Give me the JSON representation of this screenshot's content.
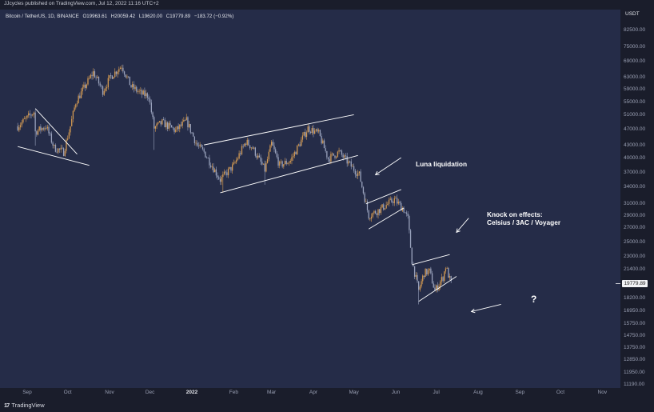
{
  "header": {
    "published": "JJcycles published on TradingView.com, Jul 12, 2022 11:16 UTC+2",
    "symbol": "Bitcoin / TetherUS, 1D, BINANCE",
    "open": "O19963.61",
    "high": "H20059.42",
    "low": "L19620.00",
    "close": "C19779.89",
    "change": "−183.72 (−0.92%)"
  },
  "price_axis": {
    "currency": "USDT",
    "last_price": "19779.89"
  },
  "footer": {
    "brand": "TradingView",
    "logo_mark": "17"
  },
  "annotations": {
    "luna": "Luna liquidation",
    "knock_line1": "Knock on effects:",
    "knock_line2": "Celsius / 3AC / Voyager",
    "question": "?"
  },
  "colors": {
    "background": "#252c48",
    "up_candle": "#d49a52",
    "down_candle": "#9aa3bd",
    "trendline": "#ffffff",
    "text": "#e2e4ea"
  },
  "chart_data": {
    "type": "candlestick",
    "title": "Bitcoin / TetherUS, 1D, BINANCE",
    "x_ticks": [
      "Sep",
      "Oct",
      "Nov",
      "Dec",
      "2022",
      "Feb",
      "Mar",
      "Apr",
      "May",
      "Jun",
      "Jul",
      "Aug",
      "Sep",
      "Oct",
      "Nov"
    ],
    "y_ticks": [
      "82500.00",
      "75000.00",
      "69000.00",
      "63000.00",
      "59000.00",
      "55000.00",
      "51000.00",
      "47000.00",
      "43000.00",
      "40000.00",
      "37000.00",
      "34000.00",
      "31000.00",
      "29000.00",
      "27000.00",
      "25000.00",
      "23000.00",
      "21400.00",
      "19779.89",
      "18200.00",
      "16950.00",
      "15750.00",
      "14750.00",
      "13750.00",
      "12850.00",
      "11950.00",
      "11190.00"
    ],
    "y_scale": "log",
    "ylim": [
      11000,
      88000
    ],
    "path": [
      [
        "2021-08-25",
        48000
      ],
      [
        "2021-09-06",
        52000
      ],
      [
        "2021-09-07",
        46500
      ],
      [
        "2021-09-15",
        48000
      ],
      [
        "2021-09-21",
        42500
      ],
      [
        "2021-09-28",
        41500
      ],
      [
        "2021-10-03",
        48000
      ],
      [
        "2021-10-07",
        55000
      ],
      [
        "2021-10-15",
        61000
      ],
      [
        "2021-10-20",
        65000
      ],
      [
        "2021-10-27",
        58500
      ],
      [
        "2021-11-02",
        63500
      ],
      [
        "2021-11-10",
        67500
      ],
      [
        "2021-11-17",
        60000
      ],
      [
        "2021-11-25",
        57500
      ],
      [
        "2021-11-30",
        57000
      ],
      [
        "2021-12-04",
        47500
      ],
      [
        "2021-12-10",
        49000
      ],
      [
        "2021-12-20",
        46800
      ],
      [
        "2021-12-28",
        49500
      ],
      [
        "2022-01-05",
        43000
      ],
      [
        "2022-01-10",
        41500
      ],
      [
        "2022-01-22",
        35500
      ],
      [
        "2022-02-01",
        38500
      ],
      [
        "2022-02-10",
        44000
      ],
      [
        "2022-02-15",
        42500
      ],
      [
        "2022-02-24",
        37500
      ],
      [
        "2022-03-01",
        43500
      ],
      [
        "2022-03-07",
        38500
      ],
      [
        "2022-03-15",
        39500
      ],
      [
        "2022-03-28",
        47500
      ],
      [
        "2022-04-05",
        46000
      ],
      [
        "2022-04-12",
        40000
      ],
      [
        "2022-04-20",
        41500
      ],
      [
        "2022-04-30",
        38000
      ],
      [
        "2022-05-05",
        36500
      ],
      [
        "2022-05-10",
        31000
      ],
      [
        "2022-05-12",
        29000
      ],
      [
        "2022-05-20",
        30000
      ],
      [
        "2022-05-31",
        31800
      ],
      [
        "2022-06-07",
        30000
      ],
      [
        "2022-06-10",
        28500
      ],
      [
        "2022-06-13",
        22500
      ],
      [
        "2022-06-18",
        19000
      ],
      [
        "2022-06-22",
        21000
      ],
      [
        "2022-06-26",
        21200
      ],
      [
        "2022-06-30",
        19000
      ],
      [
        "2022-07-06",
        20500
      ],
      [
        "2022-07-08",
        21800
      ],
      [
        "2022-07-12",
        19780
      ]
    ],
    "wicks": [
      [
        "2021-09-07",
        43000
      ],
      [
        "2021-12-04",
        42000
      ],
      [
        "2022-01-24",
        33000
      ],
      [
        "2022-02-24",
        34500
      ],
      [
        "2022-06-18",
        17600
      ]
    ],
    "trendlines": [
      [
        [
          "2021-08-25",
          42800
        ],
        [
          "2021-10-17",
          38500
        ]
      ],
      [
        [
          "2021-09-07",
          53000
        ],
        [
          "2021-10-08",
          41000
        ]
      ],
      [
        [
          "2022-01-22",
          33000
        ],
        [
          "2022-05-04",
          40700
        ]
      ],
      [
        [
          "2022-01-10",
          43200
        ],
        [
          "2022-05-01",
          51200
        ]
      ],
      [
        [
          "2022-05-10",
          31000
        ],
        [
          "2022-06-05",
          33600
        ]
      ],
      [
        [
          "2022-05-12",
          26900
        ],
        [
          "2022-06-07",
          30300
        ]
      ],
      [
        [
          "2022-06-13",
          22000
        ],
        [
          "2022-07-11",
          23300
        ]
      ],
      [
        [
          "2022-06-18",
          17900
        ],
        [
          "2022-07-16",
          20600
        ]
      ]
    ],
    "arrows": [
      [
        [
          "2022-06-05",
          40200
        ],
        [
          "2022-05-17",
          36500
        ]
      ],
      [
        [
          "2022-07-25",
          28600
        ],
        [
          "2022-07-16",
          26400
        ]
      ],
      [
        [
          "2022-08-18",
          17600
        ],
        [
          "2022-07-27",
          16900
        ]
      ]
    ]
  }
}
